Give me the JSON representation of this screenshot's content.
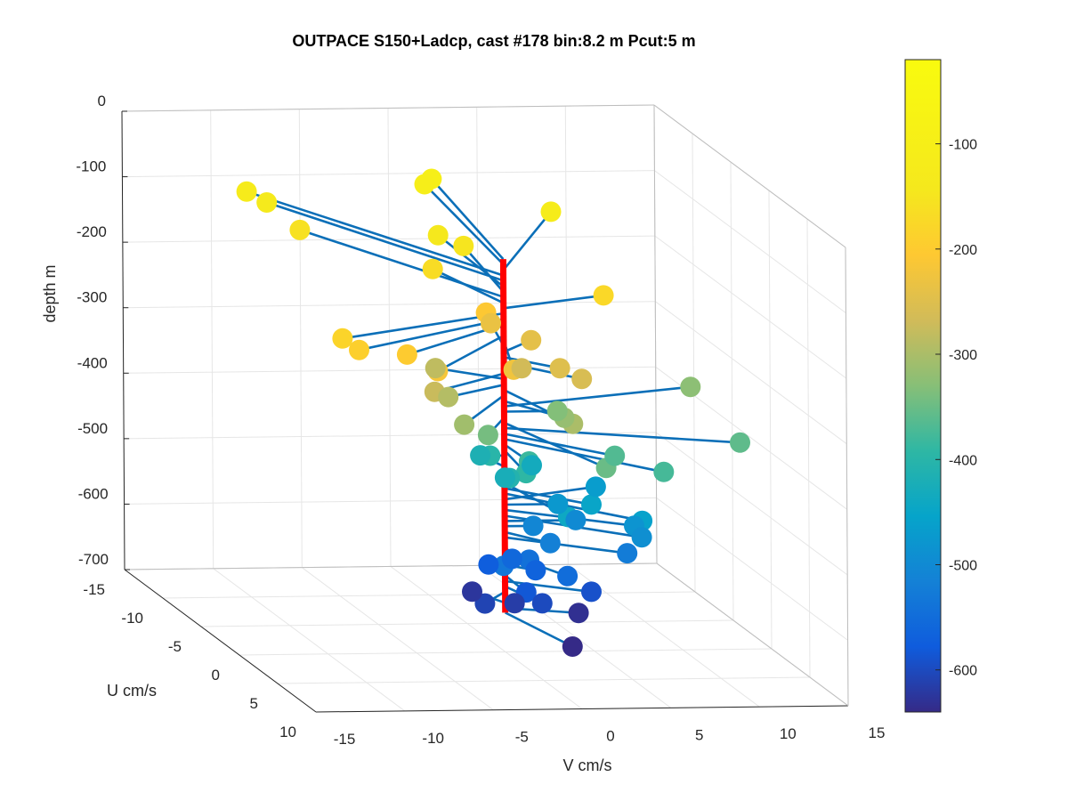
{
  "chart_data": {
    "type": "scatter",
    "title": "OUTPACE S150+Ladcp, cast #178 bin:8.2 m  Pcut:5 m",
    "xlabel": "V cm/s",
    "ylabel": "U cm/s",
    "zlabel": "depth m",
    "x_ticks": [
      "-15",
      "-10",
      "-5",
      "0",
      "5",
      "10",
      "15"
    ],
    "y_ticks": [
      "-15",
      "-10",
      "-5",
      "0",
      "5",
      "10"
    ],
    "z_ticks": [
      "0",
      "-100",
      "-200",
      "-300",
      "-400",
      "-500",
      "-600",
      "-700"
    ],
    "colorbar_ticks": [
      "-100",
      "-200",
      "-300",
      "-400",
      "-500",
      "-600"
    ],
    "colorbar_range": [
      -640,
      -20
    ],
    "grid": true,
    "series": [
      {
        "values": [
          {
            "depth": -100,
            "v": 2.0,
            "u": -14.0
          },
          {
            "depth": -108,
            "v": 1.6,
            "u": -14.0
          },
          {
            "depth": -117,
            "v": 7.0,
            "u": -10.0
          },
          {
            "depth": -125,
            "v": -8.0,
            "u": -15.0
          },
          {
            "depth": -133,
            "v": -7.3,
            "u": -14.0
          },
          {
            "depth": -142,
            "v": 0.2,
            "u": -9.0
          },
          {
            "depth": -150,
            "v": 1.2,
            "u": -8.0
          },
          {
            "depth": -158,
            "v": -6.3,
            "u": -12.0
          },
          {
            "depth": -167,
            "v": -1.4,
            "u": -6.0
          },
          {
            "depth": -175,
            "v": 6.5,
            "u": -2.0
          },
          {
            "depth": -183,
            "v": -10.8,
            "u": 4.0
          },
          {
            "depth": -192,
            "v": -10.3,
            "u": 5.0
          },
          {
            "depth": -200,
            "v": -7.6,
            "u": 5.0
          },
          {
            "depth": -208,
            "v": 0.3,
            "u": -3.0
          },
          {
            "depth": -217,
            "v": -6.3,
            "u": 6.0
          },
          {
            "depth": -225,
            "v": -1.6,
            "u": 5.0
          },
          {
            "depth": -233,
            "v": 1.0,
            "u": -4.0
          },
          {
            "depth": -242,
            "v": 2.4,
            "u": -2.0
          },
          {
            "depth": -250,
            "v": 2.3,
            "u": 2.0
          },
          {
            "depth": -258,
            "v": 3.1,
            "u": 3.0
          },
          {
            "depth": -267,
            "v": 1.0,
            "u": 0.0
          },
          {
            "depth": -275,
            "v": -5.2,
            "u": 3.0
          },
          {
            "depth": -283,
            "v": -3.0,
            "u": -2.0
          },
          {
            "depth": -292,
            "v": -4.0,
            "u": 2.0
          },
          {
            "depth": -300,
            "v": 1.3,
            "u": 6.0
          },
          {
            "depth": -308,
            "v": -4.4,
            "u": 5.0
          },
          {
            "depth": -317,
            "v": 2.1,
            "u": 3.0
          },
          {
            "depth": -325,
            "v": 11.8,
            "u": -3.0
          },
          {
            "depth": -333,
            "v": 3.0,
            "u": 0.0
          },
          {
            "depth": -342,
            "v": -2.2,
            "u": 3.0
          },
          {
            "depth": -350,
            "v": 2.3,
            "u": 8.0
          },
          {
            "depth": -358,
            "v": 12.0,
            "u": 3.0
          },
          {
            "depth": -367,
            "v": 4.5,
            "u": 4.0
          },
          {
            "depth": -375,
            "v": 6.4,
            "u": 6.0
          },
          {
            "depth": -383,
            "v": 0.1,
            "u": 3.0
          },
          {
            "depth": -392,
            "v": -0.5,
            "u": 4.0
          },
          {
            "depth": -400,
            "v": -0.8,
            "u": 0.0
          },
          {
            "depth": -408,
            "v": -1.0,
            "u": 3.0
          },
          {
            "depth": -417,
            "v": -0.5,
            "u": -2.0
          },
          {
            "depth": -425,
            "v": -0.4,
            "u": 1.0
          },
          {
            "depth": -433,
            "v": 2.4,
            "u": -2.0
          },
          {
            "depth": -442,
            "v": 1.0,
            "u": 6.0
          },
          {
            "depth": -450,
            "v": 3.6,
            "u": 3.0
          },
          {
            "depth": -458,
            "v": 5.6,
            "u": 5.0
          },
          {
            "depth": -467,
            "v": 6.0,
            "u": -2.0
          },
          {
            "depth": -475,
            "v": 3.0,
            "u": 0.0
          },
          {
            "depth": -483,
            "v": 6.0,
            "u": 3.0
          },
          {
            "depth": -492,
            "v": 6.0,
            "u": 4.0
          },
          {
            "depth": -500,
            "v": 4.0,
            "u": 0.0
          },
          {
            "depth": -508,
            "v": 1.6,
            "u": 0.0
          },
          {
            "depth": -517,
            "v": 1.7,
            "u": 2.0
          },
          {
            "depth": -525,
            "v": 5.6,
            "u": 3.0
          },
          {
            "depth": -533,
            "v": -1.8,
            "u": 4.0
          },
          {
            "depth": -542,
            "v": 0.5,
            "u": 2.0
          },
          {
            "depth": -550,
            "v": 1.8,
            "u": 4.0
          },
          {
            "depth": -558,
            "v": 0.4,
            "u": 0.0
          },
          {
            "depth": -567,
            "v": 1.3,
            "u": 1.0
          },
          {
            "depth": -575,
            "v": -0.5,
            "u": -1.0
          },
          {
            "depth": -583,
            "v": -0.1,
            "u": 3.0
          },
          {
            "depth": -592,
            "v": 4.0,
            "u": 2.0
          },
          {
            "depth": -600,
            "v": 0.8,
            "u": 3.0
          },
          {
            "depth": -608,
            "v": -2.0,
            "u": 2.0
          },
          {
            "depth": -617,
            "v": 0.1,
            "u": 1.0
          },
          {
            "depth": -625,
            "v": -1.0,
            "u": -2.0
          },
          {
            "depth": -633,
            "v": 3.7,
            "u": 1.0
          },
          {
            "depth": -640,
            "v": 1.2,
            "u": 6.0
          }
        ]
      }
    ]
  }
}
